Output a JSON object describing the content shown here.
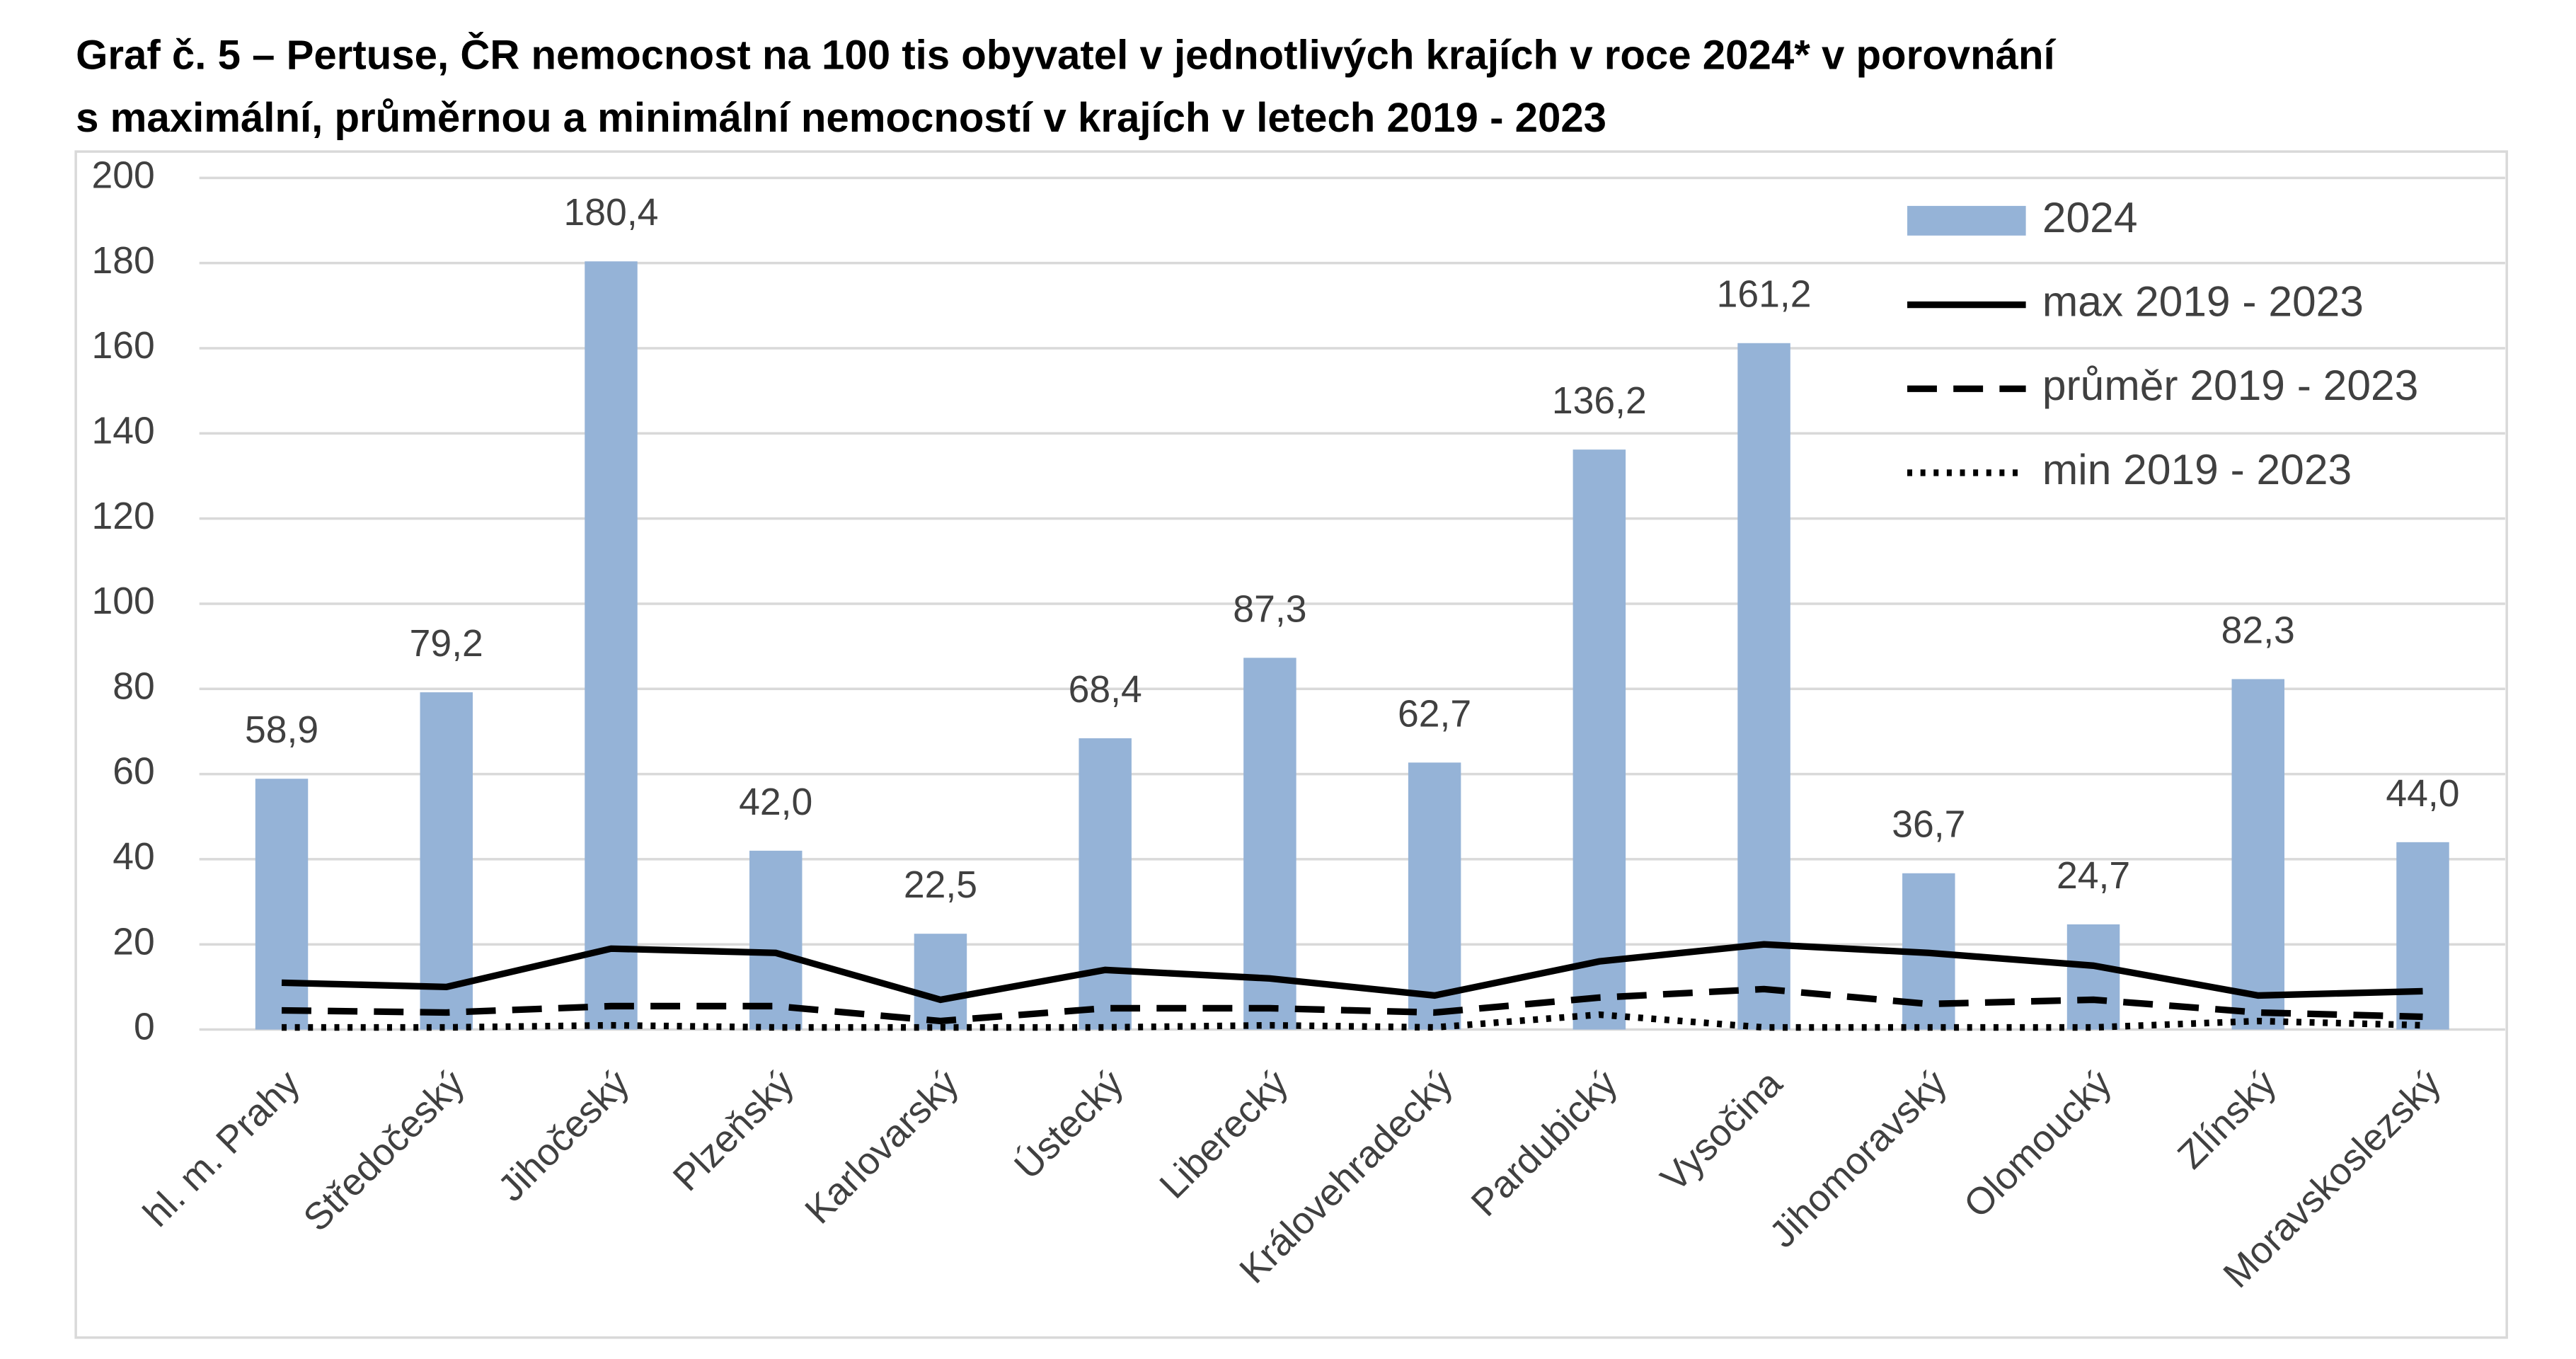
{
  "chart_data": {
    "type": "bar-line",
    "title": [
      "Graf č. 5 – Pertuse, ČR nemocnost na 100 tis obyvatel v jednotlivých krajích v roce 2024* v porovnání",
      "s maximální, průměrnou a minimální nemocností v krajích v  letech 2019 - 2023"
    ],
    "categories": [
      "hl. m. Prahy",
      "Středočeský",
      "Jihočeský",
      "Plzeňský",
      "Karlovarský",
      "Ústecký",
      "Liberecký",
      "Královehradecký",
      "Pardubický",
      "Vysočina",
      "Jihomoravský",
      "Olomoucký",
      "Zlínský",
      "Moravskoslezský"
    ],
    "series": [
      {
        "name": "2024",
        "type": "bar",
        "color": "#95b3d7",
        "values": [
          58.9,
          79.2,
          180.4,
          42.0,
          22.5,
          68.4,
          87.3,
          62.7,
          136.2,
          161.2,
          36.7,
          24.7,
          82.3,
          44.0
        ],
        "value_labels": [
          "58,9",
          "79,2",
          "180,4",
          "42,0",
          "22,5",
          "68,4",
          "87,3",
          "62,7",
          "136,2",
          "161,2",
          "36,7",
          "24,7",
          "82,3",
          "44,0"
        ]
      },
      {
        "name": "max 2019 - 2023",
        "type": "line",
        "color": "#000000",
        "dash": "solid",
        "values": [
          11,
          10,
          19,
          18,
          7,
          14,
          12,
          8,
          16,
          20,
          18,
          15,
          8,
          9
        ]
      },
      {
        "name": "průměr 2019 - 2023",
        "type": "line",
        "color": "#000000",
        "dash": "dashed",
        "values": [
          4.5,
          4,
          5.5,
          5.5,
          2,
          5,
          5,
          4,
          7.5,
          9.5,
          6,
          7,
          4,
          3
        ]
      },
      {
        "name": "min 2019 - 2023",
        "type": "line",
        "color": "#000000",
        "dash": "dotted",
        "values": [
          0.5,
          0.5,
          1,
          0.5,
          0.5,
          0.5,
          1,
          0.5,
          3.5,
          0.5,
          0.5,
          0.5,
          2,
          1
        ]
      }
    ],
    "ylim": [
      0,
      200
    ],
    "yticks": [
      0,
      20,
      40,
      60,
      80,
      100,
      120,
      140,
      160,
      180,
      200
    ],
    "grid": true,
    "legend": "top-right"
  }
}
